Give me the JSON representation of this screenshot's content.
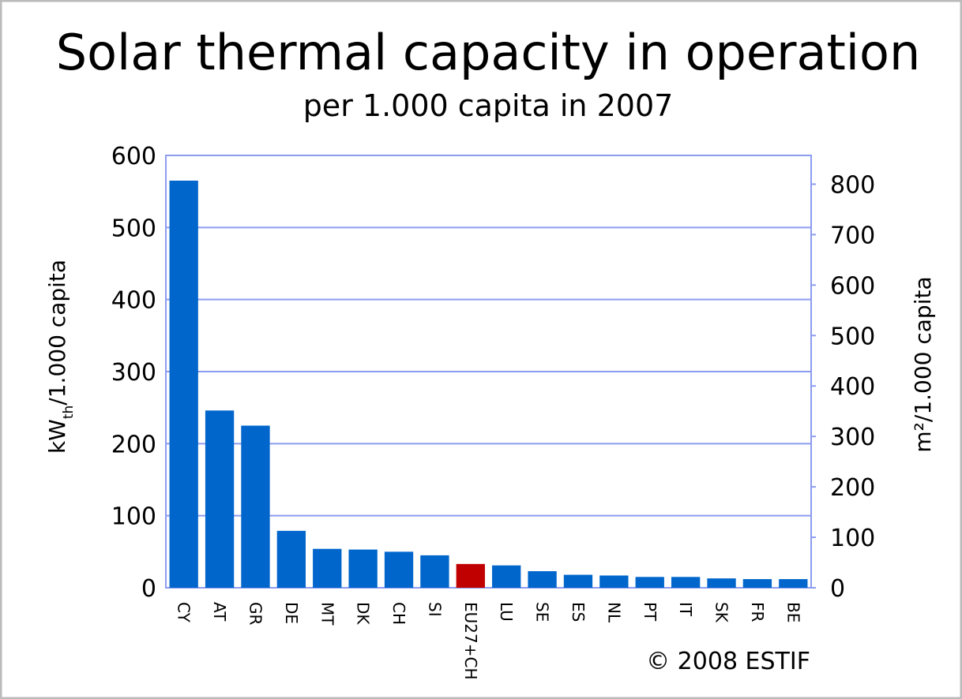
{
  "chart_data": {
    "type": "bar",
    "title": "Solar thermal capacity in operation",
    "subtitle": "per 1.000 capita in 2007",
    "y_label_parts": [
      "kW",
      "th",
      "/1.000 capita"
    ],
    "y2_label": "m²/1.000 capita",
    "credit": "© 2008 ESTIF",
    "categories": [
      "CY",
      "AT",
      "GR",
      "DE",
      "MT",
      "DK",
      "CH",
      "SI",
      "EU27+CH",
      "LU",
      "SE",
      "ES",
      "NL",
      "PT",
      "IT",
      "SK",
      "FR",
      "BE"
    ],
    "values": [
      565,
      246,
      225,
      79,
      54,
      53,
      50,
      45,
      33,
      31,
      23,
      18,
      17,
      15,
      15,
      13,
      12,
      12
    ],
    "colors": [
      "#0066cc",
      "#0066cc",
      "#0066cc",
      "#0066cc",
      "#0066cc",
      "#0066cc",
      "#0066cc",
      "#0066cc",
      "#c00000",
      "#0066cc",
      "#0066cc",
      "#0066cc",
      "#0066cc",
      "#0066cc",
      "#0066cc",
      "#0066cc",
      "#0066cc",
      "#0066cc"
    ],
    "ylim": [
      0,
      600
    ],
    "yticks": [
      0,
      100,
      200,
      300,
      400,
      500,
      600
    ],
    "y2lim": [
      0,
      857
    ],
    "y2ticks": [
      0,
      100,
      200,
      300,
      400,
      500,
      600,
      700,
      800
    ],
    "grid": true
  }
}
